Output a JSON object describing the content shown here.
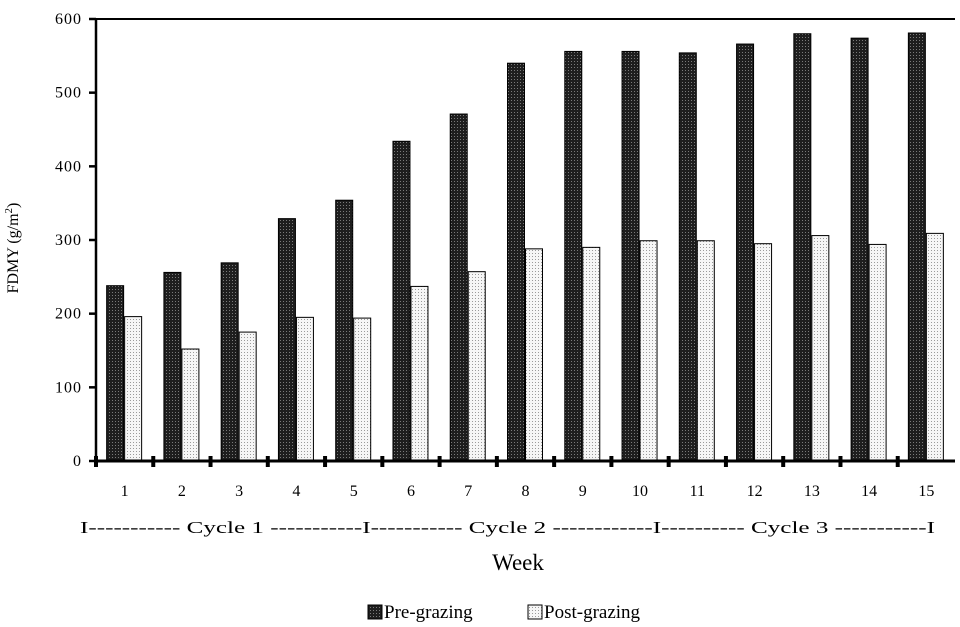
{
  "chart_data": {
    "type": "bar",
    "categories": [
      "1",
      "2",
      "3",
      "4",
      "5",
      "6",
      "7",
      "8",
      "9",
      "10",
      "11",
      "12",
      "13",
      "14",
      "15"
    ],
    "series": [
      {
        "name": "Pre-grazing",
        "values": [
          238,
          256,
          269,
          329,
          354,
          434,
          471,
          540,
          556,
          556,
          554,
          566,
          580,
          574,
          581
        ],
        "fill": "dark-dotted"
      },
      {
        "name": "Post-grazing",
        "values": [
          196,
          152,
          175,
          195,
          194,
          237,
          257,
          288,
          290,
          299,
          299,
          295,
          306,
          294,
          309
        ],
        "fill": "light-dotted"
      }
    ],
    "ylabel_main": "FDMY (g/m",
    "ylabel_sup": "2",
    "ylabel_close": ")",
    "xlabel": "Week",
    "yticks": [
      "0",
      "100",
      "200",
      "300",
      "400",
      "500",
      "600"
    ],
    "ylim": [
      0,
      600
    ],
    "cycle_labels": [
      "I----------- Cycle 1 -----------I----------- Cycle 2 ------------I---------- Cycle 3 -----------I"
    ],
    "legend": {
      "position": "bottom-center"
    },
    "grid": false,
    "colors": {
      "pre_fill": "#2b2b2b",
      "post_fill": "#f2f2f2",
      "axis": "#000000"
    }
  }
}
